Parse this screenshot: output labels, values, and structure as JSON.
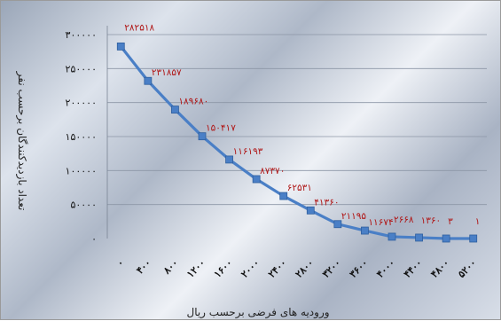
{
  "chart_data": {
    "type": "line",
    "xlabel": "ورودیه های فرضی برحسب ریال",
    "ylabel": "تعداد بازدیدکنندگان برحسب نفر",
    "categories": [
      "۰",
      "۴۰۰",
      "۸۰۰",
      "۱۲۰۰",
      "۱۶۰۰",
      "۲۰۰۰",
      "۲۴۰۰",
      "۲۸۰۰",
      "۳۲۰۰",
      "۳۶۰۰",
      "۴۰۰۰",
      "۴۴۰۰",
      "۴۸۰۰",
      "۵۲۰۰"
    ],
    "x": [
      0,
      400,
      800,
      1200,
      1600,
      2000,
      2400,
      2800,
      3200,
      3600,
      4000,
      4400,
      4800,
      5200
    ],
    "values": [
      282518,
      231857,
      189680,
      150417,
      116193,
      87370,
      62531,
      41360,
      21195,
      11674,
      2668,
      1360,
      3,
      1
    ],
    "data_labels": [
      "۲۸۲۵۱۸",
      "۲۳۱۸۵۷",
      "۱۸۹۶۸۰",
      "۱۵۰۴۱۷",
      "۱۱۶۱۹۳",
      "۸۷۳۷۰",
      "۶۲۵۳۱",
      "۴۱۳۶۰",
      "۲۱۱۹۵",
      "۱۱۶۷۴",
      "۲۶۶۸",
      "۱۳۶۰",
      "۳",
      "۱"
    ],
    "y_ticks": [
      0,
      50000,
      100000,
      150000,
      200000,
      250000,
      300000
    ],
    "y_tick_labels": [
      "۰",
      "۵۰۰۰۰",
      "۱۰۰۰۰۰",
      "۱۵۰۰۰۰",
      "۲۰۰۰۰۰",
      "۲۵۰۰۰۰",
      "۳۰۰۰۰۰"
    ],
    "ylim": [
      0,
      300000
    ],
    "grid": true,
    "line_color": "#4a7fc6",
    "label_color": "#b01818"
  }
}
